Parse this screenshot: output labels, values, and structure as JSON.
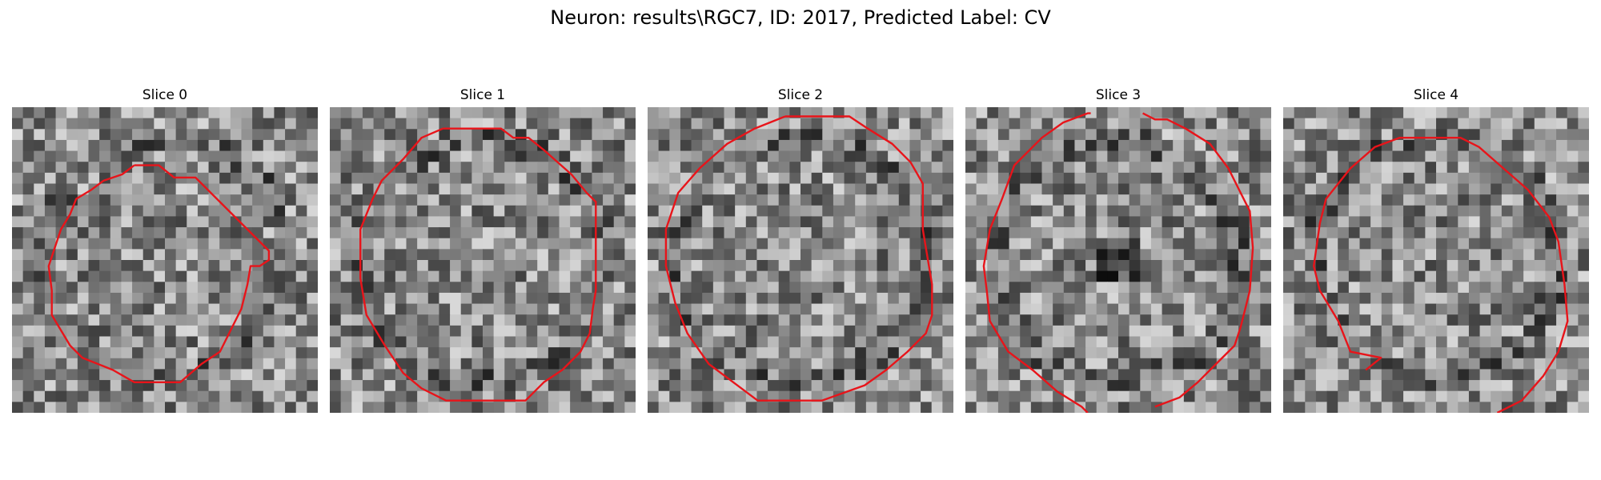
{
  "figure": {
    "title": "Neuron: results\\RGC7, ID: 2017, Predicted Label: CV"
  },
  "panels": [
    {
      "title": "Slice 0"
    },
    {
      "title": "Slice 1"
    },
    {
      "title": "Slice 2"
    },
    {
      "title": "Slice 3"
    },
    {
      "title": "Slice 4"
    }
  ],
  "colors": {
    "background": "#ffffff",
    "contour": "#e8141a",
    "image_colormap": "grayscale"
  }
}
